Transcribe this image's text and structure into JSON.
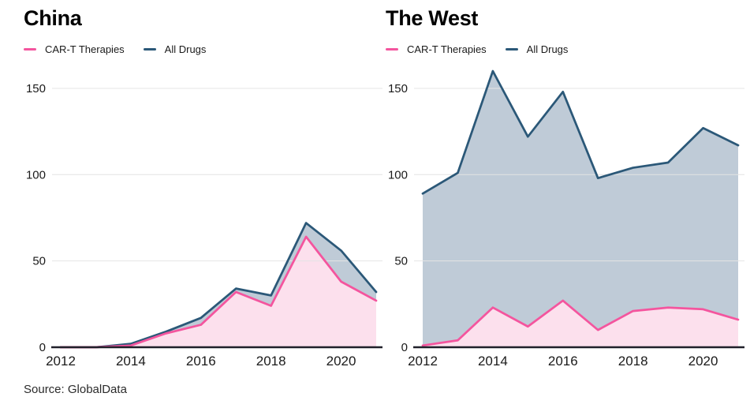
{
  "page": {
    "background": "#ffffff",
    "source_label": "Source: GlobalData"
  },
  "colors": {
    "gridline": "#e4e4e4",
    "axis": "#20202a",
    "tick_text": "#1a1a1a",
    "cart_line": "#f4559e",
    "cart_fill": "#fce0ed",
    "alldrugs_line": "#2b5878",
    "alldrugs_fill": "#bfcbd7"
  },
  "chart_data": [
    {
      "type": "area",
      "title": "China",
      "x": [
        2012,
        2013,
        2014,
        2015,
        2016,
        2017,
        2018,
        2019,
        2020,
        2021
      ],
      "xticks": [
        2012,
        2014,
        2016,
        2018,
        2020
      ],
      "yticks": [
        0,
        50,
        100,
        150
      ],
      "ylim": [
        0,
        165
      ],
      "grid": "horizontal",
      "legend_position": "top-left",
      "series": [
        {
          "name": "CAR-T Therapies",
          "line_color": "#f4559e",
          "fill_color": "#fce0ed",
          "values": [
            0,
            0,
            1,
            8,
            13,
            32,
            24,
            64,
            38,
            27
          ]
        },
        {
          "name": "All Drugs",
          "line_color": "#2b5878",
          "fill_color": "#bfcbd7",
          "values": [
            0,
            0,
            2,
            9,
            17,
            34,
            30,
            72,
            56,
            32
          ]
        }
      ]
    },
    {
      "type": "area",
      "title": "The West",
      "x": [
        2012,
        2013,
        2014,
        2015,
        2016,
        2017,
        2018,
        2019,
        2020,
        2021
      ],
      "xticks": [
        2012,
        2014,
        2016,
        2018,
        2020
      ],
      "yticks": [
        0,
        50,
        100,
        150
      ],
      "ylim": [
        0,
        165
      ],
      "grid": "horizontal",
      "legend_position": "top-left",
      "series": [
        {
          "name": "CAR-T Therapies",
          "line_color": "#f4559e",
          "fill_color": "#fce0ed",
          "values": [
            1,
            4,
            23,
            12,
            27,
            10,
            21,
            23,
            22,
            16
          ]
        },
        {
          "name": "All Drugs",
          "line_color": "#2b5878",
          "fill_color": "#bfcbd7",
          "values": [
            89,
            101,
            160,
            122,
            148,
            98,
            104,
            107,
            127,
            117
          ]
        }
      ]
    }
  ]
}
